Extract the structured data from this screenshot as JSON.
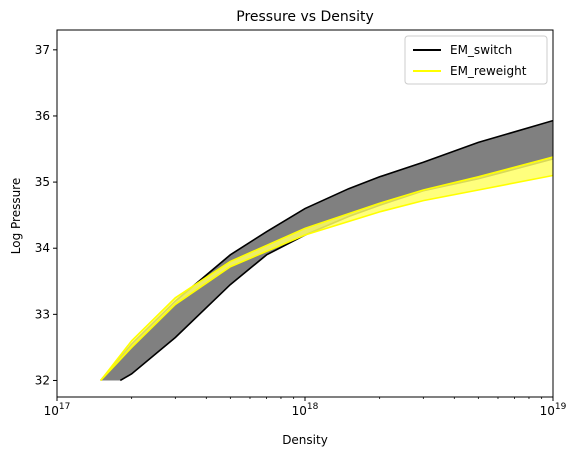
{
  "chart_data": {
    "type": "area",
    "title": "Pressure vs Density",
    "xlabel": "Density",
    "ylabel": "Log Pressure",
    "xscale": "log",
    "xlim": [
      1e+17,
      1e+19
    ],
    "ylim": [
      31.75,
      37.3
    ],
    "x_ticks": [
      {
        "value": 1e+17,
        "base": "10",
        "exp": "17"
      },
      {
        "value": 1e+18,
        "base": "10",
        "exp": "18"
      },
      {
        "value": 1e+19,
        "base": "10",
        "exp": "19"
      }
    ],
    "y_ticks": [
      32,
      33,
      34,
      35,
      36,
      37
    ],
    "legend_position": "top-right",
    "grid": false,
    "series": [
      {
        "name": "EM_switch",
        "line_color": "#000000",
        "fill_color": "#808080",
        "upper": [
          {
            "x": 1.5e+17,
            "y": 32.0
          },
          {
            "x": 2e+17,
            "y": 32.55
          },
          {
            "x": 3e+17,
            "y": 33.2
          },
          {
            "x": 5e+17,
            "y": 33.9
          },
          {
            "x": 7e+17,
            "y": 34.25
          },
          {
            "x": 1e+18,
            "y": 34.6
          },
          {
            "x": 1.5e+18,
            "y": 34.9
          },
          {
            "x": 2e+18,
            "y": 35.08
          },
          {
            "x": 3e+18,
            "y": 35.3
          },
          {
            "x": 5e+18,
            "y": 35.6
          },
          {
            "x": 1e+19,
            "y": 35.93
          }
        ],
        "lower": [
          {
            "x": 1.8e+17,
            "y": 32.0
          },
          {
            "x": 2e+17,
            "y": 32.1
          },
          {
            "x": 3e+17,
            "y": 32.65
          },
          {
            "x": 5e+17,
            "y": 33.45
          },
          {
            "x": 7e+17,
            "y": 33.9
          },
          {
            "x": 1e+18,
            "y": 34.2
          },
          {
            "x": 1.5e+18,
            "y": 34.48
          },
          {
            "x": 2e+18,
            "y": 34.65
          },
          {
            "x": 3e+18,
            "y": 34.87
          },
          {
            "x": 5e+18,
            "y": 35.05
          },
          {
            "x": 1e+19,
            "y": 35.35
          }
        ]
      },
      {
        "name": "EM_reweight",
        "line_color": "#ffff00",
        "fill_color": "#ffff66",
        "upper": [
          {
            "x": 1.5e+17,
            "y": 32.0
          },
          {
            "x": 2e+17,
            "y": 32.6
          },
          {
            "x": 3e+17,
            "y": 33.25
          },
          {
            "x": 5e+17,
            "y": 33.8
          },
          {
            "x": 1e+18,
            "y": 34.3
          },
          {
            "x": 2e+18,
            "y": 34.68
          },
          {
            "x": 3e+18,
            "y": 34.88
          },
          {
            "x": 5e+18,
            "y": 35.08
          },
          {
            "x": 1e+19,
            "y": 35.38
          }
        ],
        "lower": [
          {
            "x": 1.5e+17,
            "y": 32.0
          },
          {
            "x": 2e+17,
            "y": 32.5
          },
          {
            "x": 3e+17,
            "y": 33.15
          },
          {
            "x": 5e+17,
            "y": 33.72
          },
          {
            "x": 1e+18,
            "y": 34.2
          },
          {
            "x": 2e+18,
            "y": 34.55
          },
          {
            "x": 3e+18,
            "y": 34.72
          },
          {
            "x": 5e+18,
            "y": 34.88
          },
          {
            "x": 1e+19,
            "y": 35.1
          }
        ]
      }
    ]
  }
}
